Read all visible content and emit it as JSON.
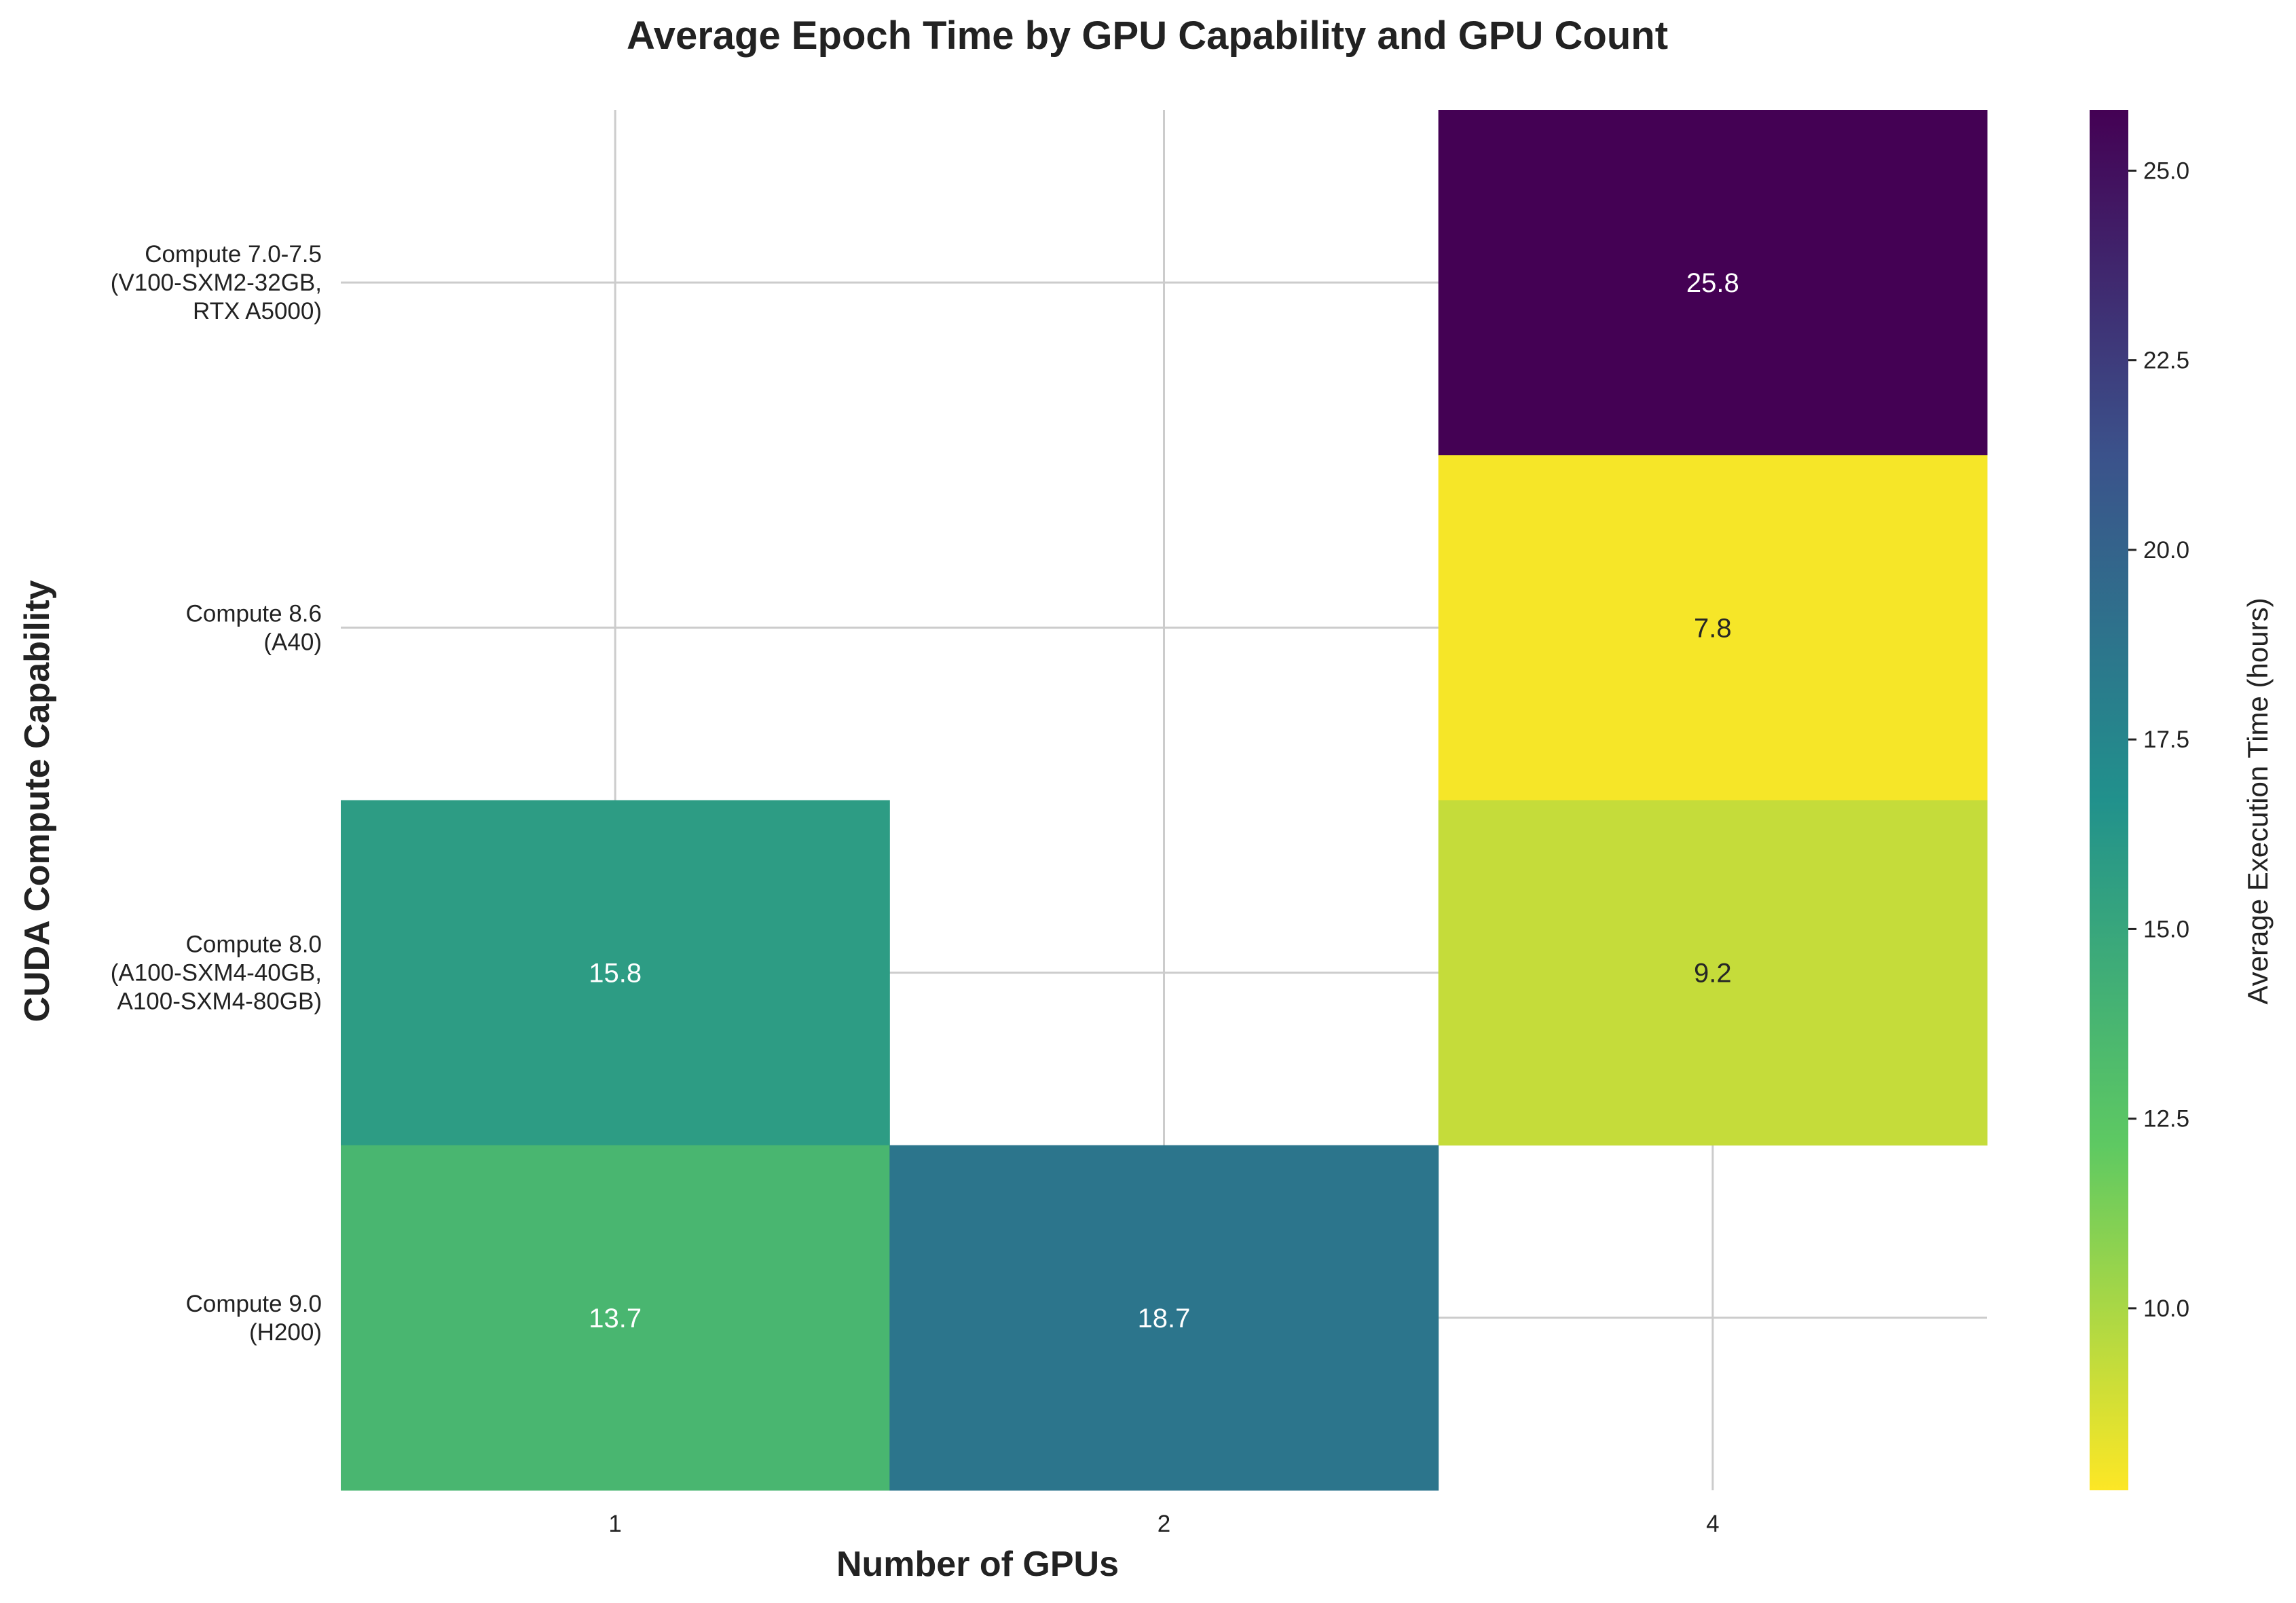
{
  "chart_data": {
    "type": "heatmap",
    "title": "Average Epoch Time by GPU Capability and GPU Count",
    "xlabel": "Number of GPUs",
    "ylabel": "CUDA Compute Capability",
    "x_categories": [
      "1",
      "2",
      "4"
    ],
    "y_categories": [
      [
        "Compute 7.0-7.5",
        "(V100-SXM2-32GB,",
        "RTX A5000)"
      ],
      [
        "Compute 8.6",
        "(A40)"
      ],
      [
        "Compute 8.0",
        "(A100-SXM4-40GB,",
        "A100-SXM4-80GB)"
      ],
      [
        "Compute 9.0",
        "(H200)"
      ]
    ],
    "values": [
      [
        null,
        null,
        25.8
      ],
      [
        null,
        null,
        7.8
      ],
      [
        15.8,
        null,
        9.2
      ],
      [
        13.7,
        18.7,
        null
      ]
    ],
    "colormap": "viridis_r",
    "colorbar": {
      "label": "Average Execution Time (hours)",
      "vmin": 7.6,
      "vmax": 25.8,
      "ticks": [
        "10.0",
        "12.5",
        "15.0",
        "17.5",
        "20.0",
        "22.5",
        "25.0"
      ]
    },
    "grid": true
  }
}
